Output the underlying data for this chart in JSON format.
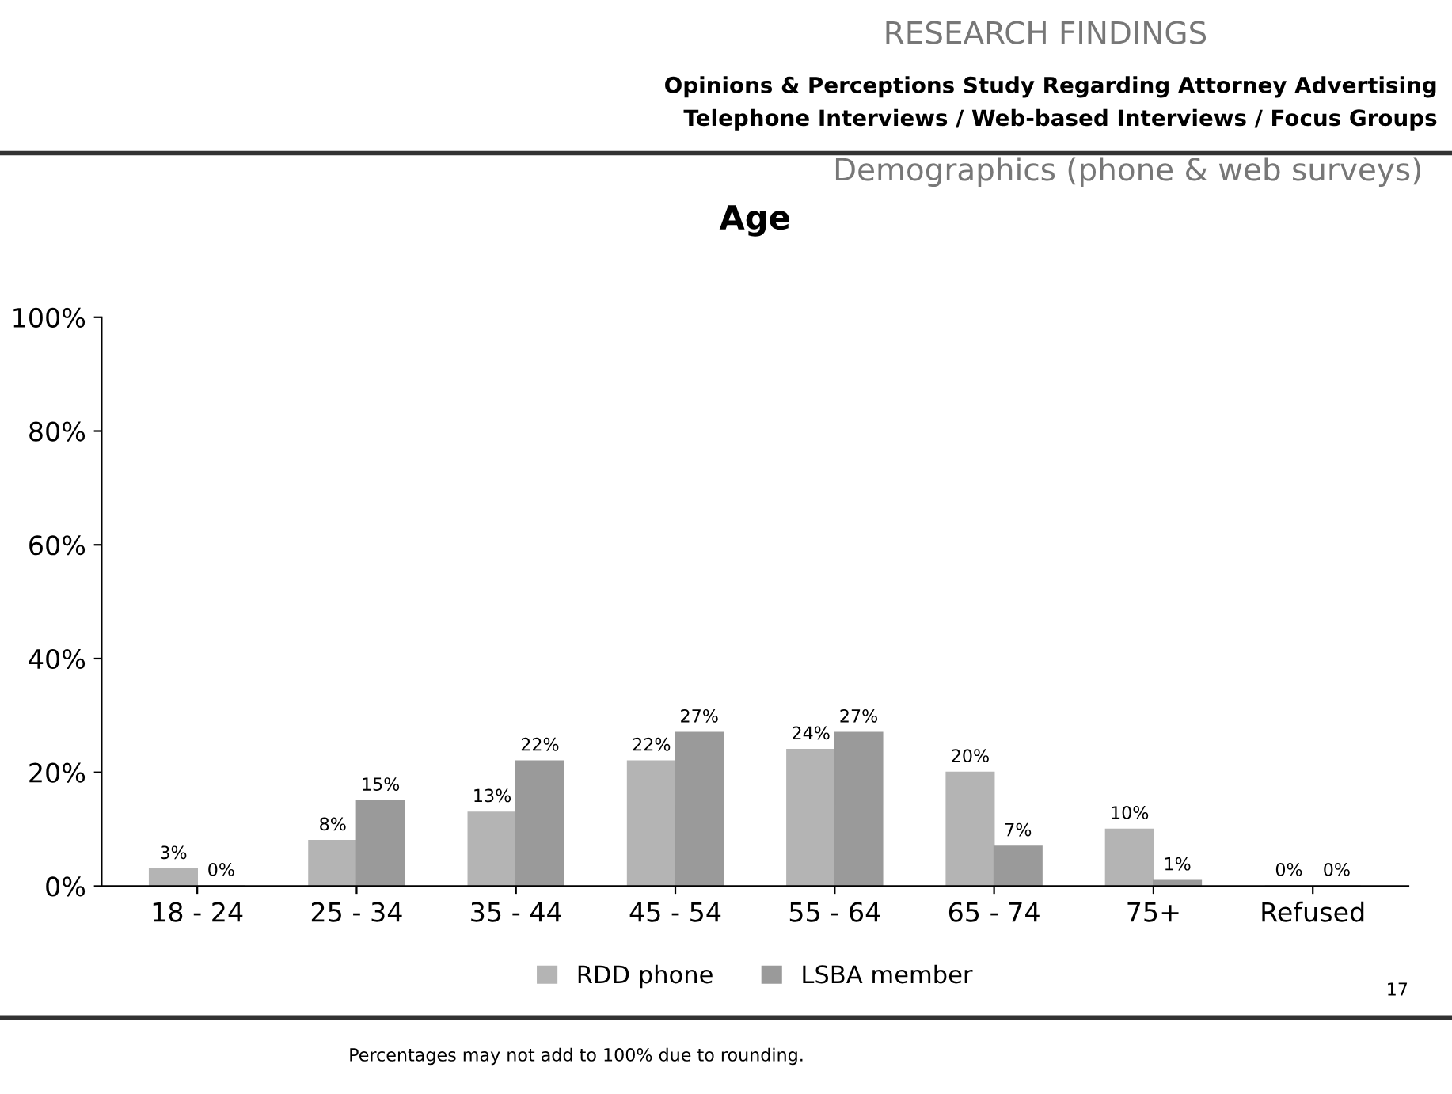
{
  "chart_data": {
    "type": "bar",
    "title": "Age",
    "subtitle": "Demographics (phone & web surveys)",
    "annotations": [
      "RESEARCH FINDINGS",
      "Opinions & Perceptions Study Regarding Attorney Advertising",
      "Telephone Interviews / Web-based Interviews / Focus Groups",
      "17",
      "Percentages may not add to 100% due to rounding."
    ],
    "categories": [
      "18 - 24",
      "25 - 34",
      "35 - 44",
      "45 - 54",
      "55 - 64",
      "65 - 74",
      "75+",
      "Refused"
    ],
    "series": [
      {
        "name": "RDD phone",
        "color": "#b4b4b4",
        "values": [
          3,
          8,
          13,
          22,
          24,
          20,
          10,
          0
        ],
        "value_labels": [
          "3%",
          "8%",
          "13%",
          "22%",
          "24%",
          "20%",
          "10%",
          "0%"
        ]
      },
      {
        "name": "LSBA member",
        "color": "#9a9a9a",
        "values": [
          0,
          15,
          22,
          27,
          27,
          7,
          1,
          0
        ],
        "value_labels": [
          "0%",
          "15%",
          "22%",
          "27%",
          "27%",
          "7%",
          "1%",
          "0%"
        ]
      }
    ],
    "ylim": [
      0,
      100
    ],
    "yticks": [
      {
        "value": 0,
        "label": "0%"
      },
      {
        "value": 20,
        "label": "20%"
      },
      {
        "value": 40,
        "label": "40%"
      },
      {
        "value": 60,
        "label": "60%"
      },
      {
        "value": 80,
        "label": "80%"
      },
      {
        "value": 100,
        "label": "100%"
      }
    ],
    "legend": "bottom",
    "grid": false
  }
}
